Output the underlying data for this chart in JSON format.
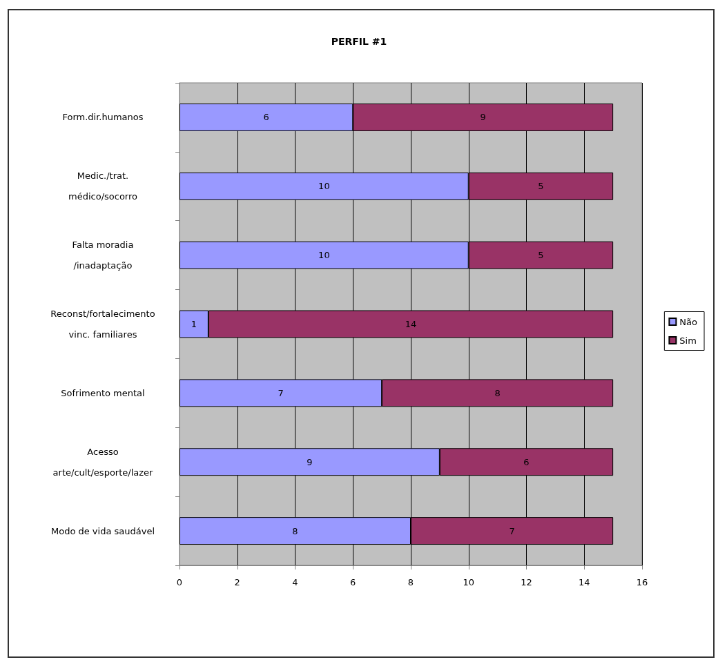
{
  "chart_data": {
    "type": "bar",
    "title": "PERFIL #1",
    "orientation": "horizontal",
    "stacked": true,
    "categories": [
      "Form.dir.humanos",
      "Medic./trat.\nmédico/socorro",
      "Falta moradia\n/inadaptação",
      "Reconst/fortalecimento\nvinc. familiares",
      "Sofrimento mental",
      "Acesso\narte/cult/esporte/lazer",
      "Modo de vida saudável"
    ],
    "series": [
      {
        "name": "Não",
        "color": "#9999ff",
        "values": [
          6,
          10,
          10,
          1,
          7,
          9,
          8
        ]
      },
      {
        "name": "Sim",
        "color": "#993366",
        "values": [
          9,
          5,
          5,
          14,
          8,
          6,
          7
        ]
      }
    ],
    "xlim": [
      0,
      16
    ],
    "xticks": [
      0,
      2,
      4,
      6,
      8,
      10,
      12,
      14,
      16
    ],
    "data_labels": true,
    "grid": "x",
    "legend": "right"
  }
}
